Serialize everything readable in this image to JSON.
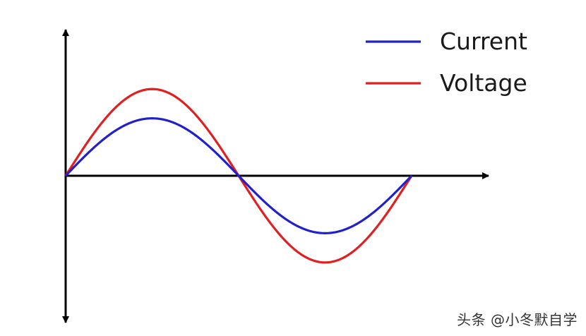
{
  "chart_data": {
    "type": "line",
    "title": "",
    "xlabel": "",
    "ylabel": "",
    "grid": false,
    "legend_position": "top-right",
    "x_unit": "cycle fraction",
    "x": [
      0,
      0.0625,
      0.125,
      0.1875,
      0.25,
      0.3125,
      0.375,
      0.4375,
      0.5,
      0.5625,
      0.625,
      0.6875,
      0.75,
      0.8125,
      0.875,
      0.9375,
      1.0
    ],
    "series": [
      {
        "name": "Current",
        "color": "#2020cc",
        "amplitude": 0.49,
        "values": [
          0,
          0.188,
          0.346,
          0.453,
          0.49,
          0.453,
          0.346,
          0.188,
          0,
          -0.188,
          -0.346,
          -0.453,
          -0.49,
          -0.453,
          -0.346,
          -0.188,
          0
        ]
      },
      {
        "name": "Voltage",
        "color": "#e02020",
        "amplitude": 0.74,
        "values": [
          0,
          0.283,
          0.523,
          0.684,
          0.74,
          0.684,
          0.523,
          0.283,
          0,
          -0.283,
          -0.523,
          -0.684,
          -0.74,
          -0.684,
          -0.523,
          -0.283,
          0
        ]
      }
    ],
    "xlim": [
      0,
      1
    ],
    "ylim": [
      -1.15,
      1.23
    ],
    "axes": {
      "x_arrow": true,
      "y_arrow_up": true,
      "y_arrow_down": true
    }
  },
  "watermark": "头条 @小冬默自学",
  "colors": {
    "axis": "#000000",
    "background": "#ffffff"
  }
}
